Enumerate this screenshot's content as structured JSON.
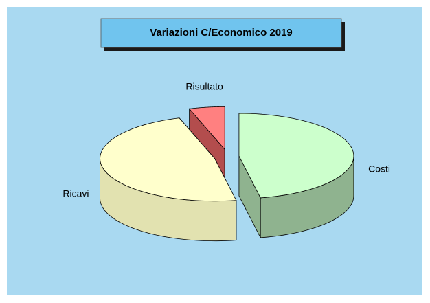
{
  "chart_data": {
    "type": "pie",
    "title": "Variazioni C/Economico 2019",
    "categories": [
      "Costi",
      "Ricavi",
      "Risultato"
    ],
    "values": [
      47,
      48,
      5
    ],
    "colors": [
      "#ccffcc",
      "#ffffcc",
      "#ff8080"
    ],
    "side_colors": [
      "#8fb38f",
      "#e2e2b0",
      "#b34d4d"
    ],
    "three_d": true
  }
}
